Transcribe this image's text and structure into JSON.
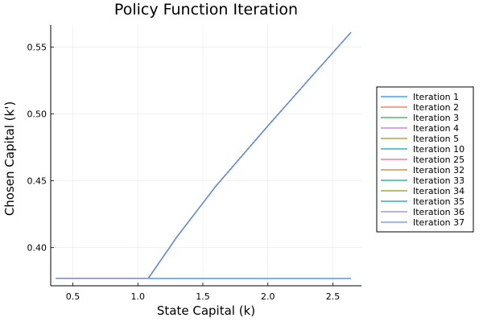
{
  "chart_data": {
    "type": "line",
    "title": "Policy Function Iteration",
    "xlabel": "State Capital (k)",
    "ylabel": "Chosen Capital (k')",
    "xlim": [
      0.33,
      2.72
    ],
    "ylim": [
      0.3715,
      0.5665
    ],
    "xticks": [
      0.5,
      1.0,
      1.5,
      2.0,
      2.5
    ],
    "xtick_labels": [
      "0.5",
      "1.0",
      "1.5",
      "2.0",
      "2.5"
    ],
    "yticks": [
      0.4,
      0.45,
      0.5,
      0.55
    ],
    "ytick_labels": [
      "0.40",
      "0.45",
      "0.50",
      "0.55"
    ],
    "grid": true,
    "legend_position": "outside-right",
    "series": [
      {
        "name": "Iteration 1",
        "color": "#009af9",
        "x": [
          0.37,
          2.64
        ],
        "y": [
          0.377,
          0.377
        ]
      },
      {
        "name": "Iteration 2",
        "color": "#e26f46",
        "x": [
          0.37,
          1.08,
          1.3,
          1.6,
          2.0,
          2.3,
          2.64
        ],
        "y": [
          0.377,
          0.377,
          0.408,
          0.446,
          0.491,
          0.524,
          0.561
        ]
      },
      {
        "name": "Iteration 3",
        "color": "#3da44d",
        "x": [
          0.37,
          1.08,
          1.3,
          1.6,
          2.0,
          2.3,
          2.64
        ],
        "y": [
          0.377,
          0.377,
          0.408,
          0.446,
          0.491,
          0.524,
          0.561
        ]
      },
      {
        "name": "Iteration 4",
        "color": "#c271d2",
        "x": [
          0.37,
          1.08,
          1.3,
          1.6,
          2.0,
          2.3,
          2.64
        ],
        "y": [
          0.377,
          0.377,
          0.408,
          0.446,
          0.491,
          0.524,
          0.561
        ]
      },
      {
        "name": "Iteration 5",
        "color": "#ac8d18",
        "x": [
          0.37,
          1.08,
          1.3,
          1.6,
          2.0,
          2.3,
          2.64
        ],
        "y": [
          0.377,
          0.377,
          0.408,
          0.446,
          0.491,
          0.524,
          0.561
        ]
      },
      {
        "name": "Iteration 10",
        "color": "#00a9ad",
        "x": [
          0.37,
          1.08,
          1.3,
          1.6,
          2.0,
          2.3,
          2.64
        ],
        "y": [
          0.377,
          0.377,
          0.408,
          0.446,
          0.491,
          0.524,
          0.561
        ]
      },
      {
        "name": "Iteration 25",
        "color": "#ed5e93",
        "x": [
          0.37,
          1.08,
          1.3,
          1.6,
          2.0,
          2.3,
          2.64
        ],
        "y": [
          0.377,
          0.377,
          0.408,
          0.446,
          0.491,
          0.524,
          0.561
        ]
      },
      {
        "name": "Iteration 32",
        "color": "#c68125",
        "x": [
          0.37,
          1.08,
          1.3,
          1.6,
          2.0,
          2.3,
          2.64
        ],
        "y": [
          0.377,
          0.377,
          0.408,
          0.446,
          0.491,
          0.524,
          0.561
        ]
      },
      {
        "name": "Iteration 33",
        "color": "#00a98d",
        "x": [
          0.37,
          1.08,
          1.3,
          1.6,
          2.0,
          2.3,
          2.64
        ],
        "y": [
          0.377,
          0.377,
          0.408,
          0.446,
          0.491,
          0.524,
          0.561
        ]
      },
      {
        "name": "Iteration 34",
        "color": "#8e971d",
        "x": [
          0.37,
          1.08,
          1.3,
          1.6,
          2.0,
          2.3,
          2.64
        ],
        "y": [
          0.377,
          0.377,
          0.408,
          0.446,
          0.491,
          0.524,
          0.561
        ]
      },
      {
        "name": "Iteration 35",
        "color": "#00a0b4",
        "x": [
          0.37,
          1.08,
          1.3,
          1.6,
          2.0,
          2.3,
          2.64
        ],
        "y": [
          0.377,
          0.377,
          0.408,
          0.446,
          0.491,
          0.524,
          0.561
        ]
      },
      {
        "name": "Iteration 36",
        "color": "#9b7fe8",
        "x": [
          0.37,
          1.08,
          1.3,
          1.6,
          2.0,
          2.3,
          2.64
        ],
        "y": [
          0.377,
          0.377,
          0.408,
          0.446,
          0.491,
          0.524,
          0.561
        ]
      },
      {
        "name": "Iteration 37",
        "color": "#618df6",
        "x": [
          0.37,
          1.08,
          1.3,
          1.6,
          2.0,
          2.3,
          2.64
        ],
        "y": [
          0.377,
          0.377,
          0.408,
          0.446,
          0.491,
          0.524,
          0.561
        ]
      }
    ]
  }
}
